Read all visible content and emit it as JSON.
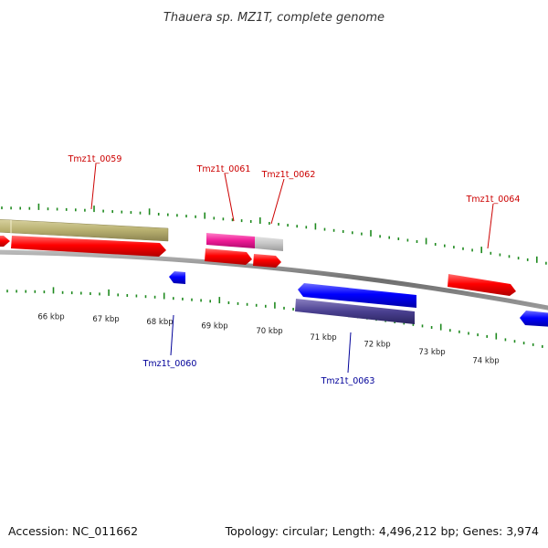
{
  "title": "Thauera sp. MZ1T, complete genome",
  "footer": {
    "accession": "Accession: NC_011662",
    "summary": "Topology: circular; Length: 4,496,212 bp; Genes: 3,974"
  },
  "colors": {
    "backbone": "#808080",
    "tick": "#1f8a1f",
    "label_forward": "#cc0000",
    "label_reverse": "#000099"
  },
  "kbp_ticks": [
    {
      "label": "66 kbp"
    },
    {
      "label": "67 kbp"
    },
    {
      "label": "68 kbp"
    },
    {
      "label": "69 kbp"
    },
    {
      "label": "70 kbp"
    },
    {
      "label": "71 kbp"
    },
    {
      "label": "72 kbp"
    },
    {
      "label": "73 kbp"
    },
    {
      "label": "74 kbp"
    }
  ],
  "gene_labels": [
    {
      "id": "tmz1t_0059",
      "text": "Tmz1t_0059",
      "strand": "forward"
    },
    {
      "id": "tmz1t_0061",
      "text": "Tmz1t_0061",
      "strand": "forward"
    },
    {
      "id": "tmz1t_0062",
      "text": "Tmz1t_0062",
      "strand": "forward"
    },
    {
      "id": "tmz1t_0064",
      "text": "Tmz1t_0064",
      "strand": "forward"
    },
    {
      "id": "tmz1t_0060",
      "text": "Tmz1t_0060",
      "strand": "reverse"
    },
    {
      "id": "tmz1t_0063",
      "text": "Tmz1t_0063",
      "strand": "reverse"
    }
  ]
}
